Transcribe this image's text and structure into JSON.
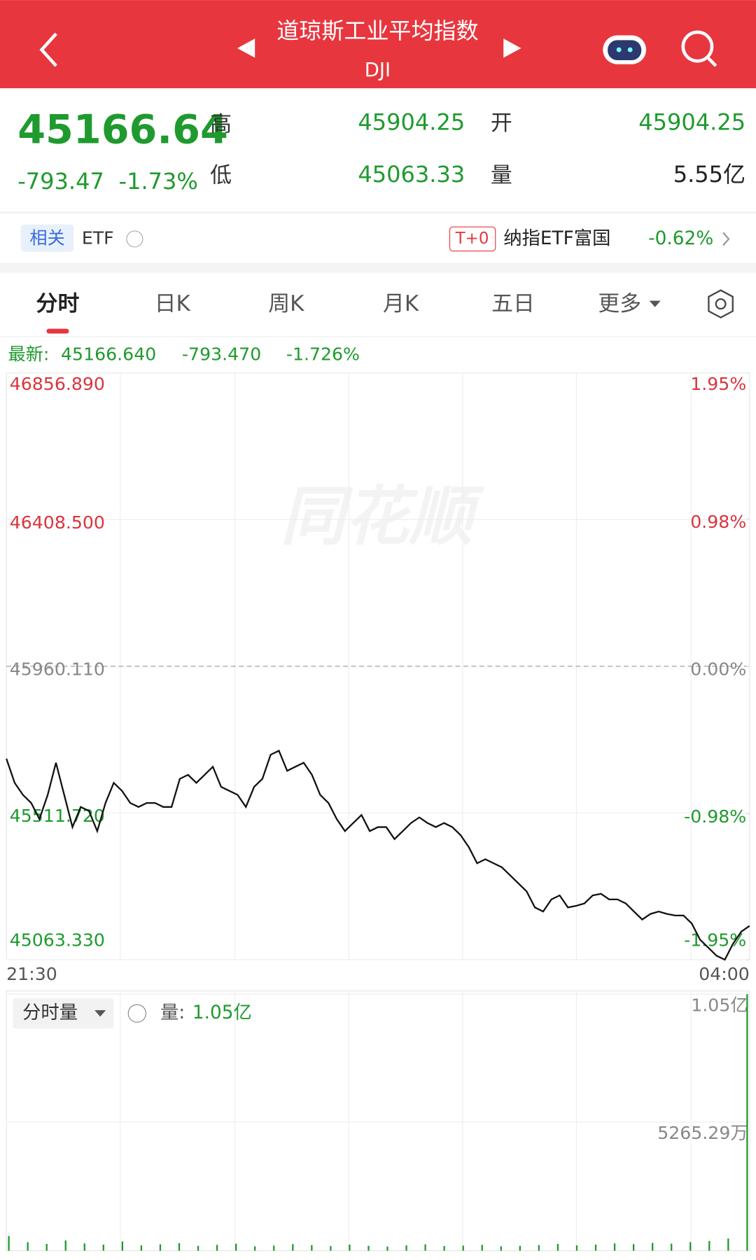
{
  "header": {
    "title": "道琼斯工业平均指数",
    "code": "DJI"
  },
  "quote": {
    "price": "45166.64",
    "change": "-793.47",
    "change_pct": "-1.73%",
    "high_label": "高",
    "high": "45904.25",
    "low_label": "低",
    "low": "45063.33",
    "open_label": "开",
    "open": "45904.25",
    "volume_label": "量",
    "volume": "5.55亿"
  },
  "etf": {
    "tag": "相关",
    "label": "ETF",
    "badge": "T+0",
    "name": "纳指ETF富国",
    "change": "-0.62%"
  },
  "tabs": [
    "分时",
    "日K",
    "周K",
    "月K",
    "五日",
    "更多"
  ],
  "latest": {
    "label": "最新:",
    "price": "45166.640",
    "change": "-793.470",
    "change_pct": "-1.726%"
  },
  "chart_data": {
    "type": "line",
    "color": "#111111",
    "values": [
      45677.5,
      45603.8,
      45567.0,
      45542.4,
      45493.3,
      45567.0,
      45665.3,
      45567.0,
      45468.7,
      45530.1,
      45517.8,
      45456.4,
      45542.4,
      45603.8,
      45579.3,
      45542.4,
      45530.1,
      45542.4,
      45542.4,
      45530.1,
      45530.1,
      45616.1,
      45628.4,
      45603.8,
      45628.4,
      45653.0,
      45591.5,
      45579.3,
      45567.0,
      45530.1,
      45591.5,
      45616.1,
      45689.8,
      45702.1,
      45640.7,
      45653.0,
      45665.3,
      45628.4,
      45567.0,
      45542.4,
      45493.3,
      45456.4,
      45481.0,
      45505.6,
      45456.4,
      45468.7,
      45468.7,
      45431.8,
      45456.4,
      45481.0,
      45498.2,
      45481.0,
      45468.7,
      45481.0,
      45468.7,
      45444.1,
      45407.3,
      45358.1,
      45370.4,
      45358.1,
      45345.8,
      45321.3,
      45296.7,
      45272.1,
      45223.0,
      45210.7,
      45247.6,
      45259.9,
      45223.0,
      45227.9,
      45235.3,
      45259.9,
      45264.8,
      45247.6,
      45247.6,
      45235.3,
      45210.7,
      45186.1,
      45203.3,
      45210.7,
      45203.3,
      45198.4,
      45198.4,
      45173.9,
      45124.7,
      45100.1,
      45075.6,
      45063.33,
      45112.4,
      45149.3,
      45166.64
    ],
    "ylim": [
      45063.33,
      46856.89
    ],
    "yticks": [
      {
        "value": 46856.89,
        "label": "46856.890"
      },
      {
        "value": 46408.5,
        "label": "46408.500"
      },
      {
        "value": 45960.11,
        "label": "45960.110"
      },
      {
        "value": 45511.72,
        "label": "45511.720"
      },
      {
        "value": 45063.33,
        "label": "45063.330"
      }
    ],
    "y2lim": [
      -1.95,
      1.95
    ],
    "y2ticks": [
      {
        "value": 1.95,
        "label": "1.95%"
      },
      {
        "value": 0.98,
        "label": "0.98%"
      },
      {
        "value": 0,
        "label": "0.00%"
      },
      {
        "value": -0.98,
        "label": "-0.98%"
      },
      {
        "value": -1.95,
        "label": "-1.95%"
      }
    ],
    "time_labels": [
      "21:30",
      "04:00"
    ],
    "grid": true
  },
  "volume_chart": {
    "type": "bar",
    "selector": "分时量",
    "label": "量:",
    "value": "1.05亿",
    "color": "#1f9a2e",
    "values": [
      6000000,
      3500000,
      2800000,
      4200000,
      3000000,
      2500000,
      3800000,
      2200000,
      2600000,
      3100000,
      2000000,
      2400000,
      2900000,
      1800000,
      2100000,
      2700000,
      2300000,
      1900000,
      2500000,
      2000000,
      1700000,
      2200000,
      2600000,
      1900000,
      2100000,
      2400000,
      1800000,
      2000000,
      2300000,
      2800000,
      2200000,
      2500000,
      3000000,
      2700000,
      3200000,
      2900000,
      3500000,
      4000000,
      5000000,
      105000000
    ],
    "ylim": [
      0,
      105000000
    ],
    "yticks": [
      {
        "value": 105000000,
        "label": "1.05亿"
      },
      {
        "value": 52652900,
        "label": "5265.29万"
      }
    ]
  }
}
